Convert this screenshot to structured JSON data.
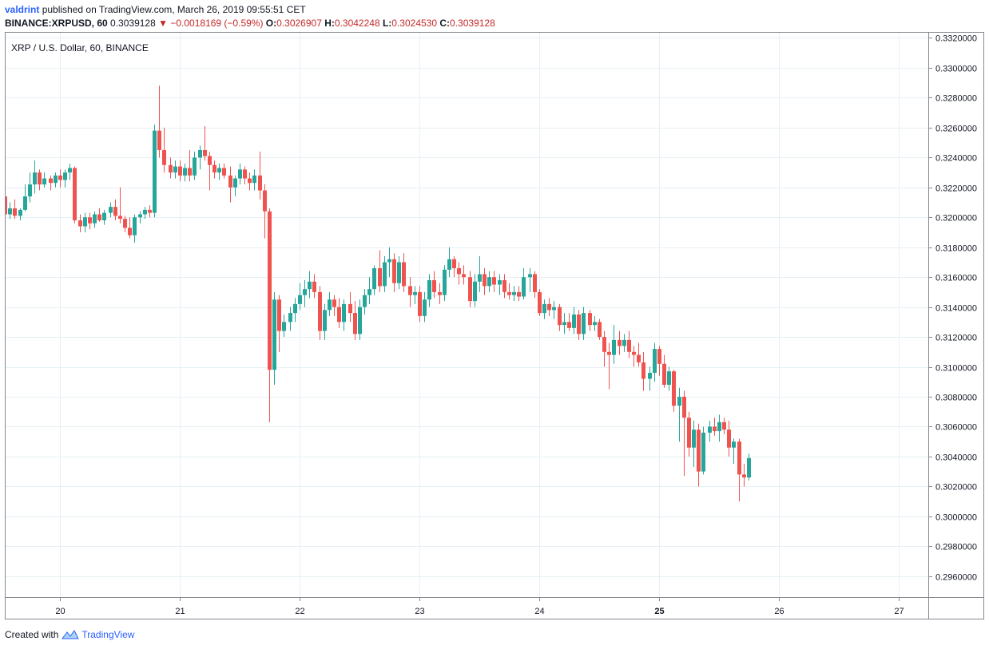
{
  "header": {
    "user": "valdrint",
    "published_text": "published on TradingView.com, March 26, 2019 09:55:51 CET",
    "symbol_line": "BINANCE:XRPUSD, 60",
    "last": "0.3039128",
    "change_text": "−0.0018169 (−0.59%)",
    "o_label": "O:",
    "o_value": "0.3026907",
    "h_label": "H:",
    "h_value": "0.3042248",
    "l_label": "L:",
    "l_value": "0.3024530",
    "c_label": "C:",
    "c_value": "0.3039128"
  },
  "footer": {
    "created_with": "Created with",
    "brand": "TradingView"
  },
  "colors": {
    "up": "#26a69a",
    "down": "#ef5350",
    "grid": "#e6f0f5",
    "axis": "#868993"
  },
  "chart_data": {
    "type": "candlestick",
    "title": "XRP / U.S. Dollar, 60, BINANCE",
    "y_ticks": [
      "0.3320000",
      "0.3300000",
      "0.3280000",
      "0.3260000",
      "0.3240000",
      "0.3220000",
      "0.3200000",
      "0.3180000",
      "0.3160000",
      "0.3140000",
      "0.3120000",
      "0.3100000",
      "0.3080000",
      "0.3060000",
      "0.3040000",
      "0.3020000",
      "0.3000000",
      "0.2980000",
      "0.2960000"
    ],
    "ylim": [
      0.2946,
      0.3324
    ],
    "x_ticks": [
      {
        "label": "20",
        "day": 20,
        "bold": false
      },
      {
        "label": "21",
        "day": 21,
        "bold": false
      },
      {
        "label": "22",
        "day": 22,
        "bold": false
      },
      {
        "label": "23",
        "day": 23,
        "bold": false
      },
      {
        "label": "24",
        "day": 24,
        "bold": false
      },
      {
        "label": "25",
        "day": 25,
        "bold": true
      },
      {
        "label": "26",
        "day": 26,
        "bold": false
      },
      {
        "label": "27",
        "day": 27,
        "bold": false
      }
    ],
    "xlim": [
      19.54,
      27.25
    ],
    "grid": true,
    "legend": "none",
    "candles": [
      [
        19.54,
        0.3214,
        0.3215,
        0.32,
        0.3202
      ],
      [
        19.58,
        0.3202,
        0.321,
        0.3199,
        0.3206
      ],
      [
        19.62,
        0.3206,
        0.3212,
        0.3199,
        0.3201
      ],
      [
        19.67,
        0.3201,
        0.3206,
        0.3198,
        0.3205
      ],
      [
        19.71,
        0.3205,
        0.3222,
        0.3204,
        0.3214
      ],
      [
        19.75,
        0.3214,
        0.323,
        0.321,
        0.3222
      ],
      [
        19.79,
        0.3222,
        0.3238,
        0.3216,
        0.323
      ],
      [
        19.83,
        0.323,
        0.3232,
        0.3218,
        0.3222
      ],
      [
        19.87,
        0.3222,
        0.323,
        0.322,
        0.3226
      ],
      [
        19.92,
        0.3226,
        0.3228,
        0.3218,
        0.3223
      ],
      [
        19.96,
        0.3223,
        0.323,
        0.322,
        0.3228
      ],
      [
        20.0,
        0.3228,
        0.3232,
        0.322,
        0.3225
      ],
      [
        20.04,
        0.3225,
        0.3232,
        0.322,
        0.323
      ],
      [
        20.08,
        0.323,
        0.3236,
        0.3225,
        0.3233
      ],
      [
        20.12,
        0.3233,
        0.3234,
        0.3196,
        0.3198
      ],
      [
        20.17,
        0.3198,
        0.3202,
        0.319,
        0.3194
      ],
      [
        20.21,
        0.3194,
        0.3203,
        0.319,
        0.32
      ],
      [
        20.25,
        0.32,
        0.3203,
        0.3192,
        0.3196
      ],
      [
        20.29,
        0.3196,
        0.3204,
        0.3193,
        0.3202
      ],
      [
        20.33,
        0.3202,
        0.3206,
        0.3197,
        0.3198
      ],
      [
        20.37,
        0.3198,
        0.3205,
        0.3195,
        0.3203
      ],
      [
        20.42,
        0.3203,
        0.321,
        0.32,
        0.3207
      ],
      [
        20.46,
        0.3207,
        0.3212,
        0.3198,
        0.3201
      ],
      [
        20.5,
        0.3201,
        0.322,
        0.3196,
        0.3199
      ],
      [
        20.54,
        0.3199,
        0.3201,
        0.319,
        0.3193
      ],
      [
        20.58,
        0.3193,
        0.32,
        0.3186,
        0.3188
      ],
      [
        20.62,
        0.3188,
        0.3202,
        0.3183,
        0.32
      ],
      [
        20.67,
        0.32,
        0.3204,
        0.3196,
        0.3202
      ],
      [
        20.71,
        0.3202,
        0.3207,
        0.3199,
        0.3205
      ],
      [
        20.75,
        0.3205,
        0.3208,
        0.32,
        0.3203
      ],
      [
        20.79,
        0.3203,
        0.3262,
        0.32,
        0.3258
      ],
      [
        20.83,
        0.3258,
        0.3288,
        0.324,
        0.3245
      ],
      [
        20.87,
        0.3245,
        0.326,
        0.323,
        0.3235
      ],
      [
        20.92,
        0.3235,
        0.324,
        0.3226,
        0.323
      ],
      [
        20.96,
        0.323,
        0.3238,
        0.3226,
        0.3234
      ],
      [
        21.0,
        0.3234,
        0.3238,
        0.3224,
        0.3228
      ],
      [
        21.04,
        0.3228,
        0.3236,
        0.3224,
        0.3233
      ],
      [
        21.08,
        0.3233,
        0.3245,
        0.3224,
        0.3228
      ],
      [
        21.12,
        0.3228,
        0.3244,
        0.3225,
        0.324
      ],
      [
        21.17,
        0.324,
        0.3248,
        0.3232,
        0.3245
      ],
      [
        21.21,
        0.3245,
        0.3261,
        0.3238,
        0.3241
      ],
      [
        21.25,
        0.3241,
        0.3244,
        0.3218,
        0.3235
      ],
      [
        21.29,
        0.3235,
        0.3238,
        0.3226,
        0.323
      ],
      [
        21.33,
        0.323,
        0.3236,
        0.3225,
        0.3233
      ],
      [
        21.37,
        0.3233,
        0.3236,
        0.3226,
        0.3228
      ],
      [
        21.42,
        0.3228,
        0.3234,
        0.321,
        0.322
      ],
      [
        21.46,
        0.322,
        0.3228,
        0.3214,
        0.3226
      ],
      [
        21.5,
        0.3226,
        0.3236,
        0.3222,
        0.3232
      ],
      [
        21.54,
        0.3232,
        0.3234,
        0.3222,
        0.3226
      ],
      [
        21.58,
        0.3226,
        0.323,
        0.3218,
        0.3223
      ],
      [
        21.62,
        0.3223,
        0.3232,
        0.3218,
        0.3228
      ],
      [
        21.67,
        0.3228,
        0.3244,
        0.3212,
        0.3218
      ],
      [
        21.71,
        0.3218,
        0.3222,
        0.3186,
        0.3204
      ],
      [
        21.75,
        0.3204,
        0.3206,
        0.3063,
        0.3098
      ],
      [
        21.79,
        0.3098,
        0.315,
        0.3088,
        0.3145
      ],
      [
        21.83,
        0.3145,
        0.3148,
        0.311,
        0.3124
      ],
      [
        21.87,
        0.3124,
        0.3135,
        0.312,
        0.313
      ],
      [
        21.92,
        0.313,
        0.314,
        0.3124,
        0.3136
      ],
      [
        21.96,
        0.3136,
        0.3146,
        0.313,
        0.3142
      ],
      [
        22.0,
        0.3142,
        0.3156,
        0.3138,
        0.3148
      ],
      [
        22.04,
        0.3148,
        0.3158,
        0.314,
        0.3152
      ],
      [
        22.08,
        0.3152,
        0.3164,
        0.3146,
        0.3157
      ],
      [
        22.12,
        0.3157,
        0.3162,
        0.3146,
        0.315
      ],
      [
        22.17,
        0.315,
        0.3154,
        0.3118,
        0.3124
      ],
      [
        22.21,
        0.3124,
        0.3142,
        0.3118,
        0.3138
      ],
      [
        22.25,
        0.3138,
        0.315,
        0.3134,
        0.3145
      ],
      [
        22.29,
        0.3145,
        0.3148,
        0.3134,
        0.314
      ],
      [
        22.33,
        0.314,
        0.3146,
        0.3126,
        0.313
      ],
      [
        22.37,
        0.313,
        0.3145,
        0.3124,
        0.3142
      ],
      [
        22.42,
        0.3142,
        0.315,
        0.313,
        0.3136
      ],
      [
        22.46,
        0.3136,
        0.3144,
        0.3118,
        0.3122
      ],
      [
        22.5,
        0.3122,
        0.3145,
        0.3118,
        0.314
      ],
      [
        22.54,
        0.314,
        0.3152,
        0.3135,
        0.3148
      ],
      [
        22.58,
        0.3148,
        0.316,
        0.3142,
        0.3152
      ],
      [
        22.62,
        0.3152,
        0.3168,
        0.3148,
        0.3166
      ],
      [
        22.67,
        0.3166,
        0.3178,
        0.315,
        0.3154
      ],
      [
        22.71,
        0.3154,
        0.3174,
        0.315,
        0.317
      ],
      [
        22.75,
        0.317,
        0.318,
        0.316,
        0.3172
      ],
      [
        22.79,
        0.3172,
        0.3176,
        0.315,
        0.3156
      ],
      [
        22.83,
        0.3156,
        0.3174,
        0.3152,
        0.317
      ],
      [
        22.87,
        0.317,
        0.3176,
        0.315,
        0.3154
      ],
      [
        22.92,
        0.3154,
        0.316,
        0.314,
        0.3148
      ],
      [
        22.96,
        0.3148,
        0.3154,
        0.3142,
        0.315
      ],
      [
        23.0,
        0.315,
        0.3154,
        0.313,
        0.3134
      ],
      [
        23.04,
        0.3134,
        0.315,
        0.313,
        0.3145
      ],
      [
        23.08,
        0.3145,
        0.3162,
        0.314,
        0.3158
      ],
      [
        23.12,
        0.3158,
        0.3164,
        0.3146,
        0.315
      ],
      [
        23.17,
        0.315,
        0.3156,
        0.3142,
        0.3148
      ],
      [
        23.21,
        0.3148,
        0.3168,
        0.3144,
        0.3165
      ],
      [
        23.25,
        0.3165,
        0.318,
        0.316,
        0.3172
      ],
      [
        23.29,
        0.3172,
        0.3174,
        0.316,
        0.3166
      ],
      [
        23.33,
        0.3166,
        0.317,
        0.3155,
        0.3162
      ],
      [
        23.37,
        0.3162,
        0.3168,
        0.3155,
        0.316
      ],
      [
        23.42,
        0.316,
        0.3164,
        0.314,
        0.3144
      ],
      [
        23.46,
        0.3144,
        0.3162,
        0.314,
        0.3157
      ],
      [
        23.5,
        0.3157,
        0.3174,
        0.315,
        0.3162
      ],
      [
        23.54,
        0.3162,
        0.3166,
        0.3148,
        0.3154
      ],
      [
        23.58,
        0.3154,
        0.3164,
        0.315,
        0.316
      ],
      [
        23.62,
        0.316,
        0.3164,
        0.315,
        0.3155
      ],
      [
        23.67,
        0.3155,
        0.3162,
        0.3148,
        0.3158
      ],
      [
        23.71,
        0.3158,
        0.3162,
        0.3146,
        0.315
      ],
      [
        23.75,
        0.315,
        0.3156,
        0.3145,
        0.3148
      ],
      [
        23.79,
        0.3148,
        0.3154,
        0.3144,
        0.315
      ],
      [
        23.83,
        0.315,
        0.3154,
        0.3144,
        0.3147
      ],
      [
        23.87,
        0.3147,
        0.3166,
        0.3145,
        0.316
      ],
      [
        23.92,
        0.316,
        0.3166,
        0.315,
        0.3162
      ],
      [
        23.96,
        0.3162,
        0.3164,
        0.3146,
        0.315
      ],
      [
        24.0,
        0.315,
        0.3152,
        0.3134,
        0.3136
      ],
      [
        24.04,
        0.3136,
        0.3145,
        0.3132,
        0.3142
      ],
      [
        24.08,
        0.3142,
        0.3146,
        0.3134,
        0.3138
      ],
      [
        24.12,
        0.3138,
        0.3144,
        0.3132,
        0.314
      ],
      [
        24.17,
        0.314,
        0.3142,
        0.3124,
        0.3128
      ],
      [
        24.21,
        0.3128,
        0.3136,
        0.3122,
        0.313
      ],
      [
        24.25,
        0.313,
        0.3136,
        0.3124,
        0.3126
      ],
      [
        24.29,
        0.3126,
        0.314,
        0.3122,
        0.3135
      ],
      [
        24.33,
        0.3135,
        0.3138,
        0.3118,
        0.3122
      ],
      [
        24.37,
        0.3122,
        0.314,
        0.3118,
        0.3136
      ],
      [
        24.42,
        0.3136,
        0.3138,
        0.3124,
        0.3128
      ],
      [
        24.46,
        0.3128,
        0.3134,
        0.3124,
        0.313
      ],
      [
        24.5,
        0.313,
        0.3132,
        0.3118,
        0.312
      ],
      [
        24.54,
        0.312,
        0.3124,
        0.31,
        0.311
      ],
      [
        24.58,
        0.311,
        0.3116,
        0.3085,
        0.3108
      ],
      [
        24.62,
        0.3108,
        0.3128,
        0.3102,
        0.3118
      ],
      [
        24.67,
        0.3118,
        0.3124,
        0.3108,
        0.3114
      ],
      [
        24.71,
        0.3114,
        0.3122,
        0.311,
        0.3118
      ],
      [
        24.75,
        0.3118,
        0.3124,
        0.3106,
        0.311
      ],
      [
        24.79,
        0.311,
        0.3114,
        0.31,
        0.3108
      ],
      [
        24.83,
        0.3108,
        0.3116,
        0.31,
        0.3103
      ],
      [
        24.87,
        0.3103,
        0.311,
        0.3084,
        0.3092
      ],
      [
        24.92,
        0.3092,
        0.31,
        0.3084,
        0.3096
      ],
      [
        24.96,
        0.3096,
        0.3116,
        0.309,
        0.3112
      ],
      [
        25.0,
        0.3112,
        0.3114,
        0.3094,
        0.3102
      ],
      [
        25.04,
        0.3102,
        0.3108,
        0.3086,
        0.3088
      ],
      [
        25.08,
        0.3088,
        0.31,
        0.3084,
        0.3097
      ],
      [
        25.12,
        0.3097,
        0.3098,
        0.307,
        0.3074
      ],
      [
        25.17,
        0.3074,
        0.3086,
        0.305,
        0.308
      ],
      [
        25.21,
        0.308,
        0.3084,
        0.3027,
        0.3066
      ],
      [
        25.25,
        0.3066,
        0.307,
        0.304,
        0.3046
      ],
      [
        25.29,
        0.3046,
        0.3064,
        0.3033,
        0.3058
      ],
      [
        25.33,
        0.3058,
        0.3062,
        0.302,
        0.303
      ],
      [
        25.37,
        0.303,
        0.306,
        0.3028,
        0.3056
      ],
      [
        25.42,
        0.3056,
        0.3064,
        0.305,
        0.306
      ],
      [
        25.46,
        0.306,
        0.3066,
        0.3054,
        0.3057
      ],
      [
        25.5,
        0.3057,
        0.3068,
        0.305,
        0.3063
      ],
      [
        25.54,
        0.3063,
        0.3066,
        0.3055,
        0.3058
      ],
      [
        25.58,
        0.3058,
        0.3064,
        0.304,
        0.3046
      ],
      [
        25.62,
        0.3046,
        0.3052,
        0.3035,
        0.305
      ],
      [
        25.67,
        0.305,
        0.3052,
        0.301,
        0.3028
      ],
      [
        25.71,
        0.3028,
        0.3035,
        0.302,
        0.3026
      ],
      [
        25.75,
        0.3026,
        0.3042,
        0.3024,
        0.3039
      ]
    ]
  }
}
